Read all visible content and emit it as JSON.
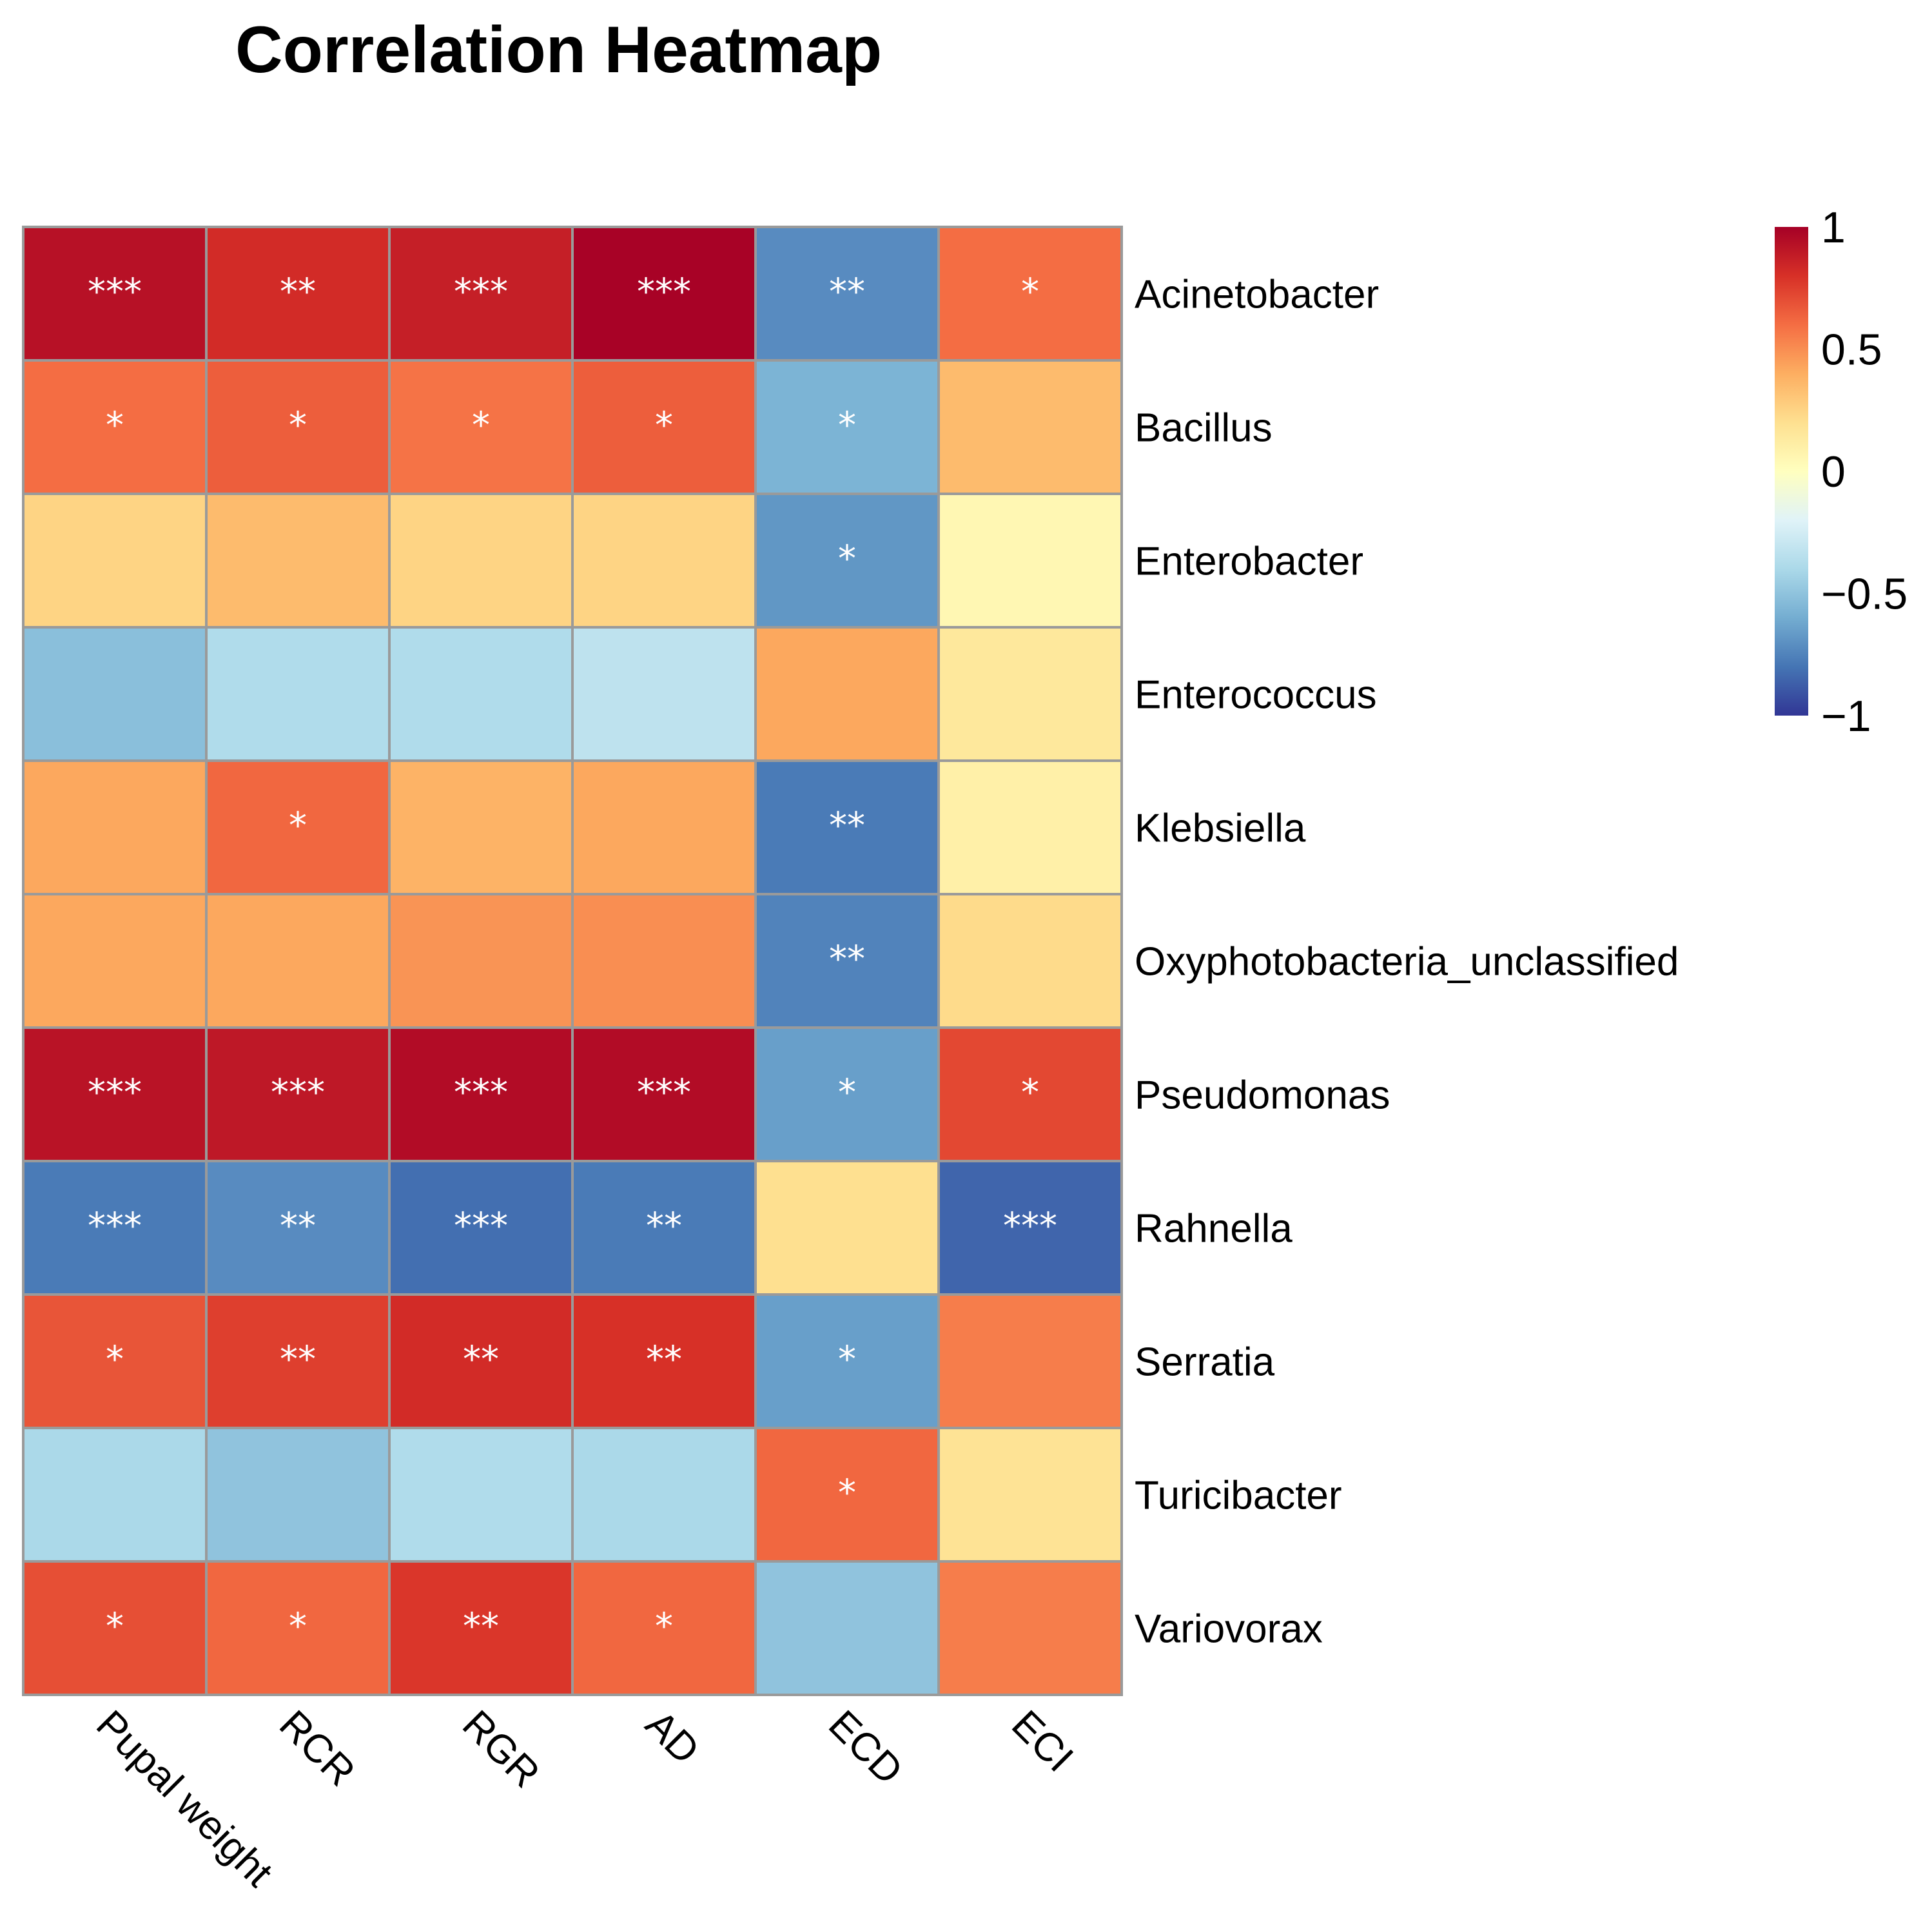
{
  "chart_data": {
    "type": "heatmap",
    "title": "Correlation Heatmap",
    "columns": [
      "Pupal weight",
      "RCR",
      "RGR",
      "AD",
      "ECD",
      "ECI"
    ],
    "rows": [
      "Acinetobacter",
      "Bacillus",
      "Enterobacter",
      "Enterococcus",
      "Klebsiella",
      "Oxyphotobacteria_unclassified",
      "Pseudomonas",
      "Rahnella",
      "Serratia",
      "Turicibacter",
      "Variovorax"
    ],
    "values": [
      [
        0.93,
        0.82,
        0.87,
        0.99,
        -0.72,
        0.6
      ],
      [
        0.6,
        0.65,
        0.58,
        0.65,
        -0.57,
        0.35
      ],
      [
        0.25,
        0.35,
        0.25,
        0.25,
        -0.68,
        0.05
      ],
      [
        -0.52,
        -0.38,
        -0.38,
        -0.33,
        0.42,
        0.15
      ],
      [
        0.42,
        0.62,
        0.38,
        0.42,
        -0.78,
        0.1
      ],
      [
        0.42,
        0.42,
        0.48,
        0.5,
        -0.75,
        0.22
      ],
      [
        0.92,
        0.9,
        0.95,
        0.95,
        -0.65,
        0.72
      ],
      [
        -0.78,
        -0.72,
        -0.82,
        -0.78,
        0.2,
        -0.85
      ],
      [
        0.68,
        0.75,
        0.82,
        0.8,
        -0.65,
        0.55
      ],
      [
        -0.4,
        -0.5,
        -0.38,
        -0.4,
        0.62,
        0.18
      ],
      [
        0.7,
        0.62,
        0.78,
        0.62,
        -0.5,
        0.55
      ]
    ],
    "significance": [
      [
        "***",
        "**",
        "***",
        "***",
        "**",
        "*"
      ],
      [
        "*",
        "*",
        "*",
        "*",
        "*",
        ""
      ],
      [
        "",
        "",
        "",
        "",
        "*",
        ""
      ],
      [
        "",
        "",
        "",
        "",
        "",
        ""
      ],
      [
        "",
        "*",
        "",
        "",
        "**",
        ""
      ],
      [
        "",
        "",
        "",
        "",
        "**",
        ""
      ],
      [
        "***",
        "***",
        "***",
        "***",
        "*",
        "*"
      ],
      [
        "***",
        "**",
        "***",
        "**",
        "",
        "***"
      ],
      [
        "*",
        "**",
        "**",
        "**",
        "*",
        ""
      ],
      [
        "",
        "",
        "",
        "",
        "*",
        ""
      ],
      [
        "*",
        "*",
        "**",
        "*",
        "",
        ""
      ]
    ],
    "legend": {
      "range": [
        -1,
        1
      ],
      "ticks": [
        1,
        0.5,
        0,
        -0.5,
        -1
      ],
      "tick_labels": [
        "1",
        "0.5",
        "0",
        "−0.5",
        "−1"
      ],
      "colors": [
        "#313695",
        "#4575b4",
        "#74add1",
        "#abd9e9",
        "#e0f3f8",
        "#ffffbf",
        "#fee090",
        "#fdae61",
        "#f46d43",
        "#d73027",
        "#a50026"
      ]
    }
  }
}
